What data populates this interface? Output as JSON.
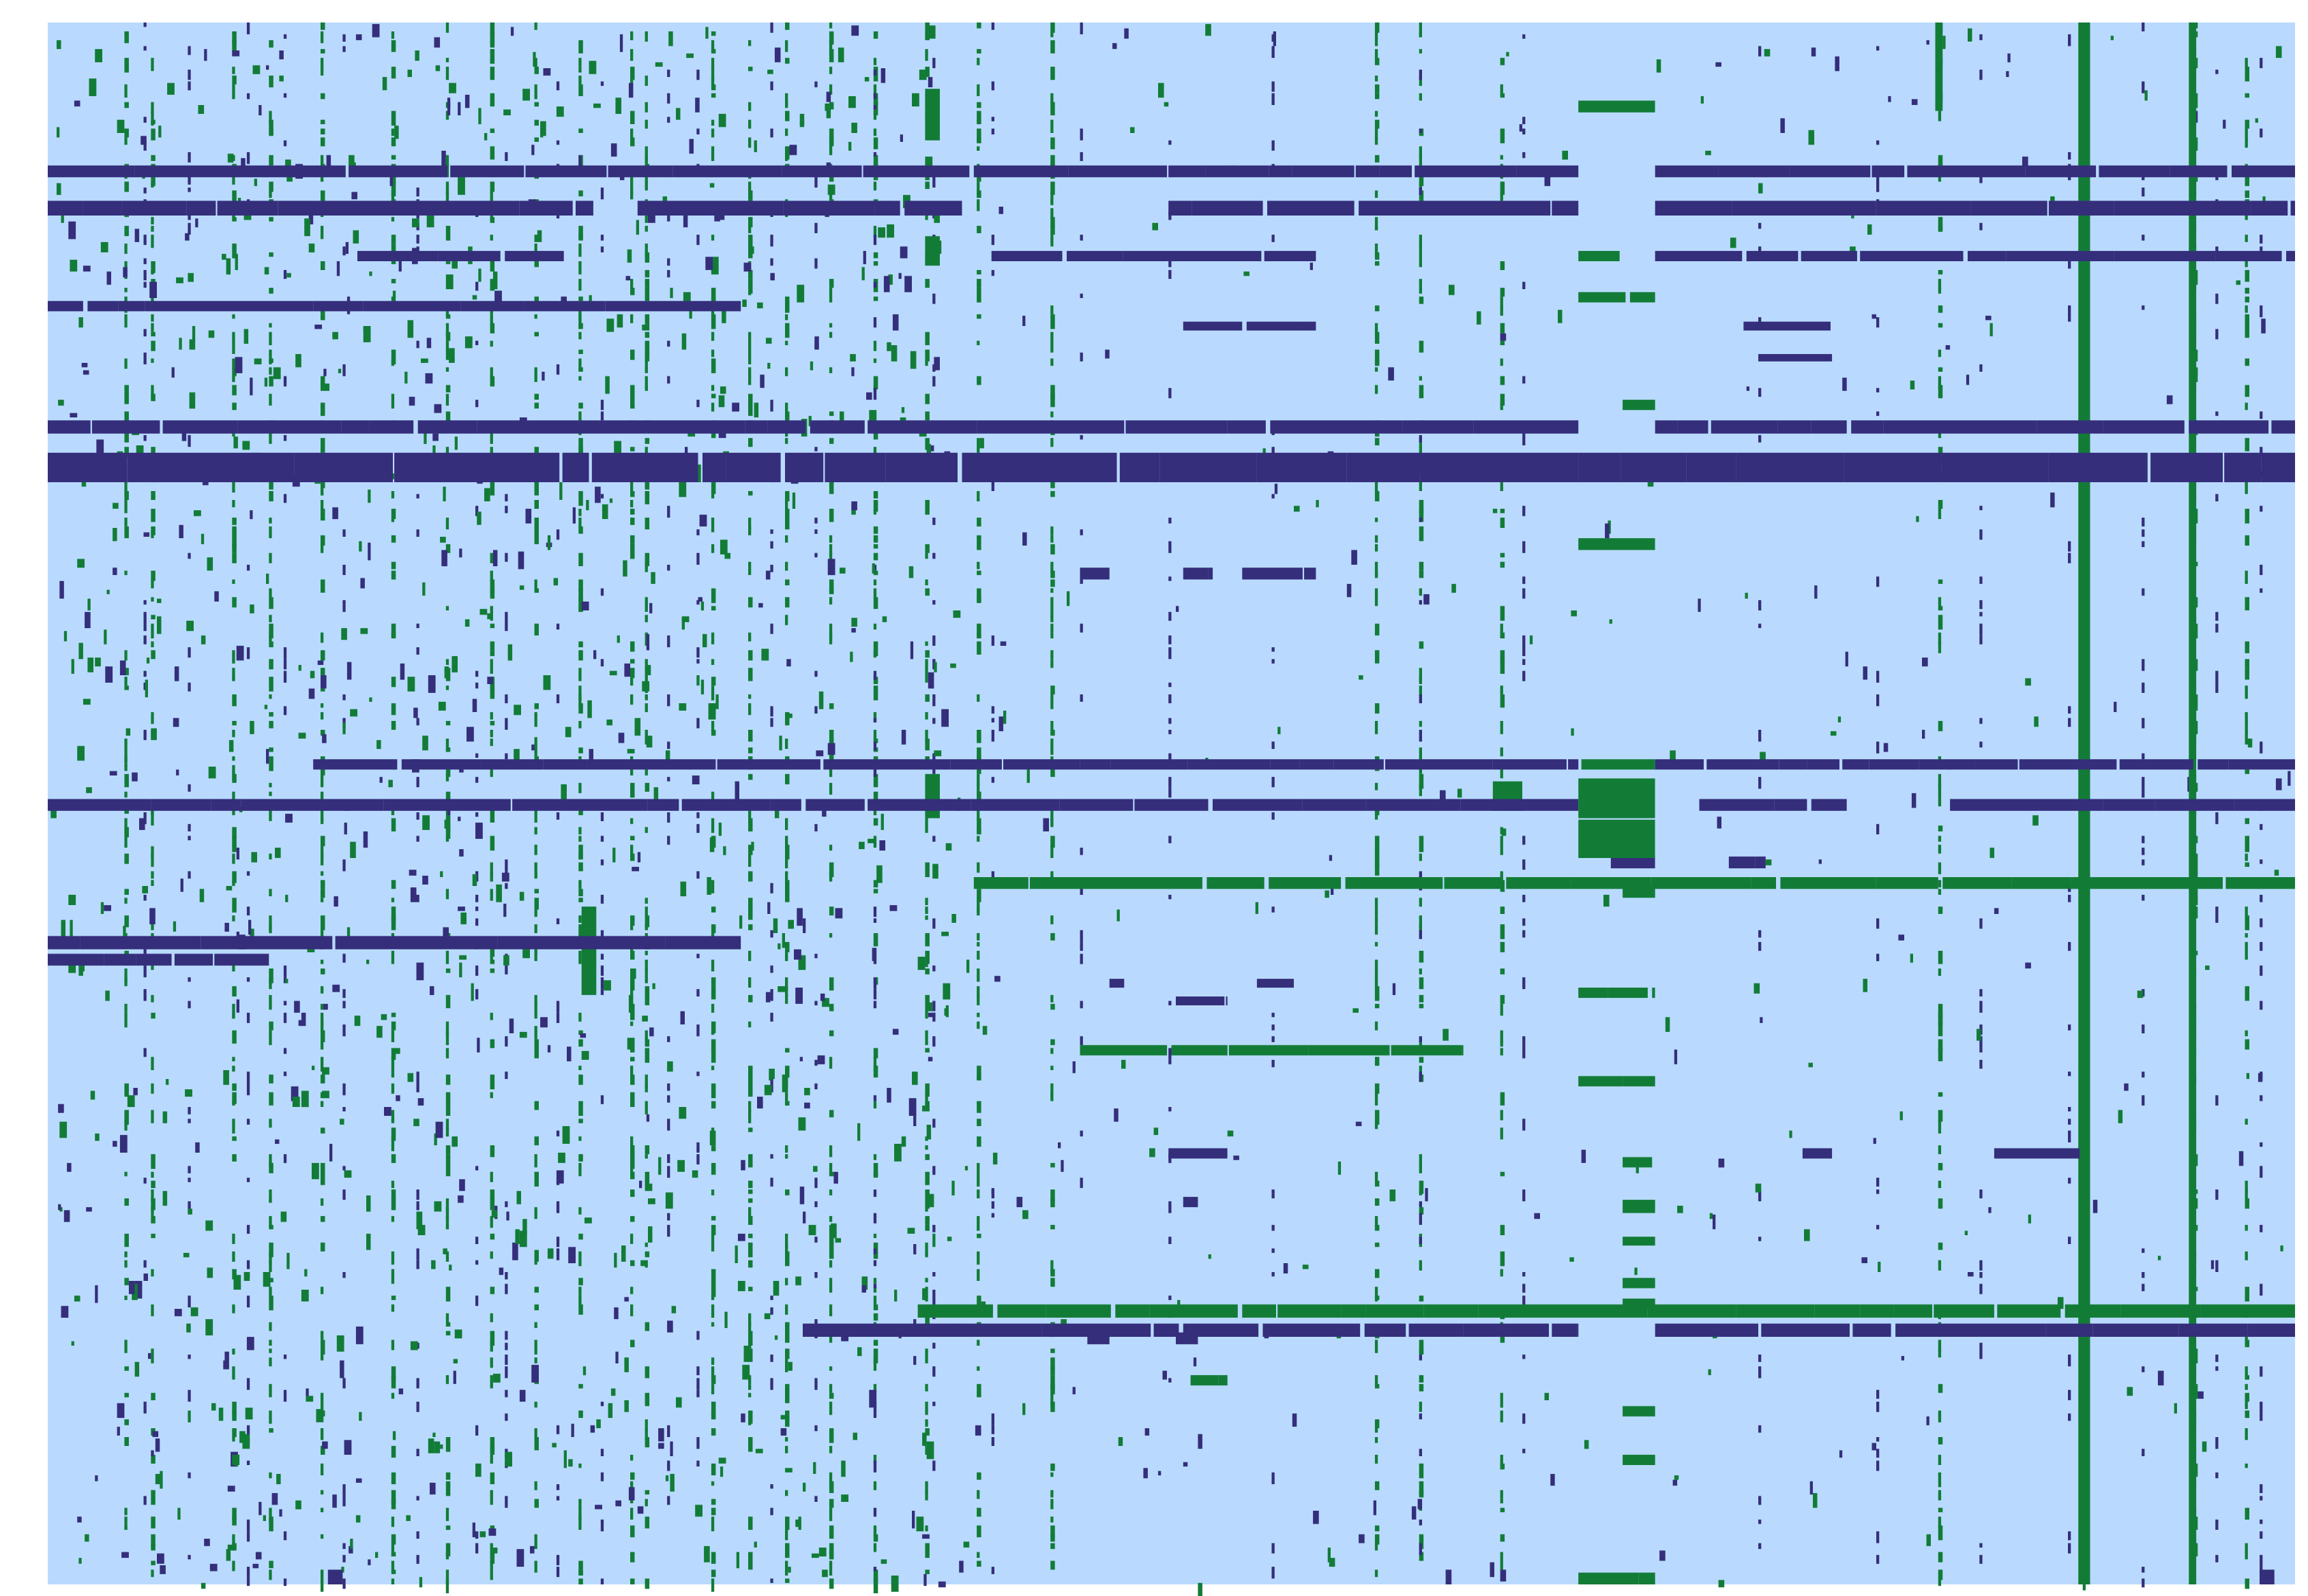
{
  "colors": {
    "background": "#b9dafe",
    "navy": "#352e7b",
    "green": "#127c37",
    "page": "#ffffff"
  },
  "chart_data": {
    "type": "heatmap",
    "title": "",
    "xlabel": "",
    "ylabel": "",
    "grid": false,
    "legend": "none",
    "n_cols": 1524,
    "n_rows": 1060,
    "categories": [
      "background",
      "navy",
      "green"
    ],
    "navy_rows": [
      [
        97,
        105,
        0,
        1038
      ],
      [
        97,
        105,
        1090,
        1524
      ],
      [
        121,
        131,
        0,
        370
      ],
      [
        121,
        131,
        400,
        620
      ],
      [
        121,
        131,
        760,
        1038
      ],
      [
        121,
        131,
        1090,
        1524
      ],
      [
        155,
        162,
        210,
        350
      ],
      [
        155,
        162,
        640,
        860
      ],
      [
        155,
        162,
        1090,
        1524
      ],
      [
        189,
        196,
        0,
        470
      ],
      [
        203,
        209,
        770,
        860
      ],
      [
        203,
        209,
        1150,
        1210
      ],
      [
        225,
        230,
        1160,
        1210
      ],
      [
        270,
        279,
        0,
        1038
      ],
      [
        270,
        279,
        1090,
        1524
      ],
      [
        292,
        312,
        0,
        460
      ],
      [
        292,
        312,
        460,
        1038
      ],
      [
        292,
        312,
        1038,
        1524
      ],
      [
        370,
        378,
        700,
        720
      ],
      [
        370,
        378,
        770,
        790
      ],
      [
        370,
        378,
        810,
        860
      ],
      [
        500,
        507,
        180,
        1038
      ],
      [
        500,
        507,
        1090,
        1524
      ],
      [
        527,
        535,
        0,
        1038
      ],
      [
        527,
        535,
        1120,
        1220
      ],
      [
        527,
        535,
        1290,
        1524
      ],
      [
        566,
        574,
        1060,
        1090
      ],
      [
        566,
        574,
        1140,
        1165
      ],
      [
        620,
        629,
        0,
        470
      ],
      [
        632,
        640,
        0,
        150
      ],
      [
        661,
        667,
        765,
        800
      ],
      [
        649,
        655,
        720,
        730
      ],
      [
        649,
        655,
        820,
        845
      ],
      [
        764,
        771,
        760,
        800
      ],
      [
        764,
        771,
        1190,
        1210
      ],
      [
        764,
        771,
        1320,
        1380
      ],
      [
        797,
        804,
        770,
        780
      ],
      [
        883,
        892,
        512,
        1038
      ],
      [
        883,
        892,
        1090,
        1524
      ],
      [
        889,
        897,
        705,
        720
      ],
      [
        889,
        897,
        765,
        780
      ],
      [
        1050,
        1060,
        190,
        200
      ],
      [
        1050,
        1060,
        1500,
        1510
      ]
    ],
    "green_rows": [
      [
        53,
        61,
        1038,
        1090
      ],
      [
        155,
        162,
        1038,
        1066
      ],
      [
        183,
        190,
        1038,
        1090
      ],
      [
        256,
        263,
        1068,
        1090
      ],
      [
        350,
        358,
        1038,
        1090
      ],
      [
        500,
        507,
        1040,
        1090
      ],
      [
        513,
        540,
        1038,
        1090
      ],
      [
        541,
        567,
        1038,
        1090
      ],
      [
        580,
        588,
        628,
        1524
      ],
      [
        586,
        594,
        1068,
        1090
      ],
      [
        655,
        662,
        1038,
        1090
      ],
      [
        694,
        701,
        700,
        960
      ],
      [
        715,
        722,
        1038,
        1090
      ],
      [
        770,
        777,
        1068,
        1090
      ],
      [
        799,
        808,
        1068,
        1090
      ],
      [
        824,
        830,
        1068,
        1090
      ],
      [
        852,
        859,
        1068,
        1090
      ],
      [
        866,
        873,
        1068,
        1090
      ],
      [
        870,
        879,
        590,
        1524
      ],
      [
        918,
        925,
        775,
        800
      ],
      [
        939,
        946,
        1068,
        1090
      ],
      [
        972,
        979,
        1068,
        1090
      ],
      [
        1052,
        1060,
        1038,
        1090
      ]
    ],
    "green_blocks": [
      [
        45,
        80,
        595,
        605
      ],
      [
        145,
        165,
        595,
        605
      ],
      [
        510,
        540,
        595,
        605
      ],
      [
        600,
        660,
        362,
        372
      ],
      [
        515,
        535,
        980,
        1000
      ],
      [
        0,
        1060,
        1377,
        1385
      ],
      [
        0,
        60,
        1280,
        1285
      ],
      [
        0,
        1060,
        1452,
        1457
      ]
    ],
    "green_cols": [
      52,
      70,
      125,
      150,
      185,
      233,
      270,
      300,
      330,
      360,
      395,
      405,
      450,
      475,
      500,
      530,
      560,
      595,
      630,
      680,
      900,
      930,
      985,
      1282,
      1380,
      1455,
      1490
    ],
    "navy_cols": [
      65,
      95,
      135,
      160,
      200,
      250,
      290,
      310,
      345,
      375,
      420,
      440,
      490,
      520,
      560,
      600,
      640,
      700,
      760,
      830,
      930,
      1000,
      1160,
      1240,
      1310,
      1370,
      1420,
      1470,
      1500
    ]
  }
}
